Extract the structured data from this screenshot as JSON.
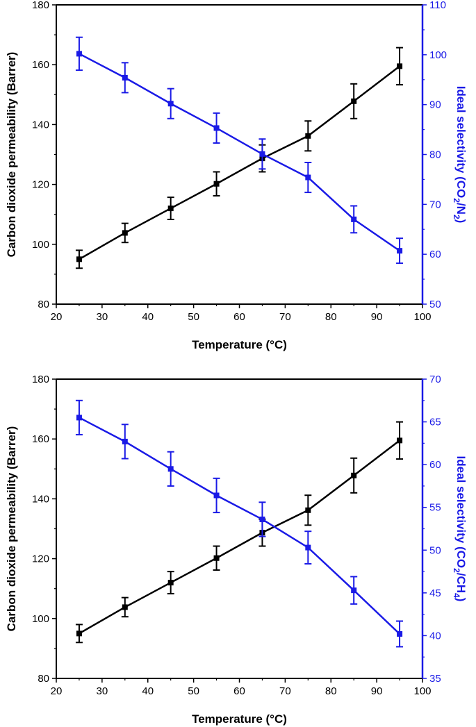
{
  "chart_data": [
    {
      "type": "line",
      "title": "",
      "xlabel": "Temperature (°C)",
      "ylabel_left": "Carbon dioxide permeability (Barrer)",
      "ylabel_right": "Ideal selectivity (CO2/N2)",
      "ylabel_right_parts": {
        "prefix": "Ideal selectivity (CO",
        "sub1": "2",
        "mid": "/N",
        "sub2": "2",
        "suffix": ")"
      },
      "xlim": [
        20,
        100
      ],
      "x_ticks": [
        "20",
        "30",
        "40",
        "50",
        "60",
        "70",
        "80",
        "90",
        "100"
      ],
      "ylim_left": [
        80,
        180
      ],
      "y_left_ticks": [
        "80",
        "100",
        "120",
        "140",
        "160",
        "180"
      ],
      "ylim_right": [
        50,
        110
      ],
      "y_right_ticks": [
        "50",
        "60",
        "70",
        "80",
        "90",
        "100",
        "110"
      ],
      "x": [
        25,
        35,
        45,
        55,
        65,
        75,
        85,
        95
      ],
      "series": [
        {
          "name": "CO2 permeability",
          "axis": "left",
          "color": "#000000",
          "values": [
            95,
            103.8,
            112,
            120.2,
            128.7,
            136.2,
            147.8,
            159.5
          ],
          "errors": [
            3,
            3.2,
            3.7,
            4,
            4.5,
            5,
            5.8,
            6.2
          ]
        },
        {
          "name": "CO2/N2 selectivity",
          "axis": "right",
          "color": "#1a1ae6",
          "values": [
            100.2,
            95.4,
            90.2,
            85.3,
            80.1,
            75.4,
            67,
            60.7
          ],
          "errors": [
            3.3,
            3,
            3,
            3,
            3,
            3,
            2.7,
            2.5
          ]
        }
      ]
    },
    {
      "type": "line",
      "title": "",
      "xlabel": "Temperature (°C)",
      "ylabel_left": "Carbon dioxide permeability (Barrer)",
      "ylabel_right": "Ideal selectivity (CO2/CH4)",
      "ylabel_right_parts": {
        "prefix": "Ideal selectivity (CO",
        "sub1": "2",
        "mid": "/CH",
        "sub2": "4",
        "suffix": ")"
      },
      "xlim": [
        20,
        100
      ],
      "x_ticks": [
        "20",
        "30",
        "40",
        "50",
        "60",
        "70",
        "80",
        "90",
        "100"
      ],
      "ylim_left": [
        80,
        180
      ],
      "y_left_ticks": [
        "80",
        "100",
        "120",
        "140",
        "160",
        "180"
      ],
      "ylim_right": [
        35,
        70
      ],
      "y_right_ticks": [
        "35",
        "40",
        "45",
        "50",
        "55",
        "60",
        "65",
        "70"
      ],
      "x": [
        25,
        35,
        45,
        55,
        65,
        75,
        85,
        95
      ],
      "series": [
        {
          "name": "CO2 permeability",
          "axis": "left",
          "color": "#000000",
          "values": [
            95,
            103.8,
            112,
            120.2,
            128.7,
            136.2,
            147.8,
            159.5
          ],
          "errors": [
            3,
            3.2,
            3.7,
            4,
            4.5,
            5,
            5.8,
            6.2
          ]
        },
        {
          "name": "CO2/CH4 selectivity",
          "axis": "right",
          "color": "#1a1ae6",
          "values": [
            65.5,
            62.7,
            59.5,
            56.4,
            53.6,
            50.3,
            45.3,
            40.2
          ],
          "errors": [
            2,
            2,
            2,
            2,
            2,
            1.9,
            1.6,
            1.5
          ]
        }
      ]
    }
  ]
}
